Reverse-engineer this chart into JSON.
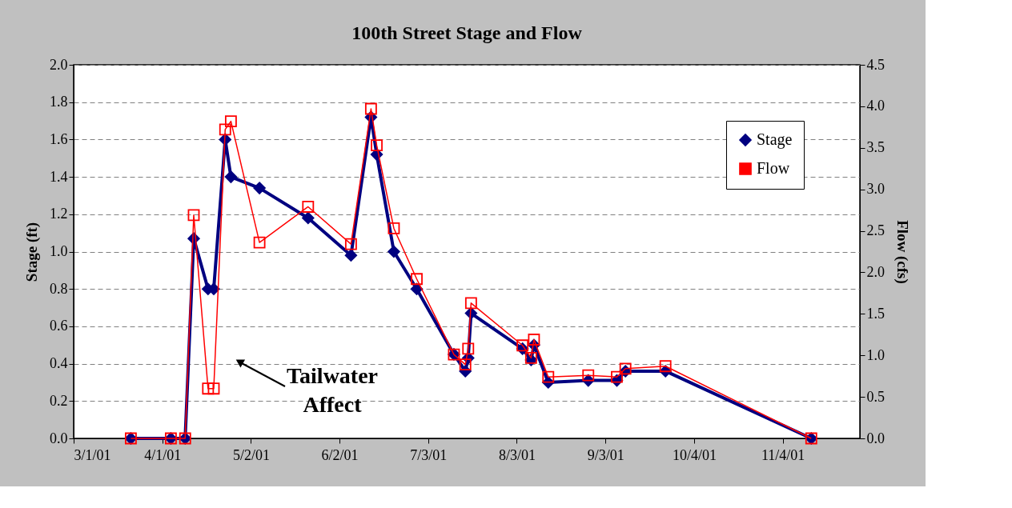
{
  "chart_data": {
    "type": "line",
    "title": "100th Street Stage and Flow",
    "ylabel": "Stage (ft)",
    "y2label": "Flow (cfs)",
    "x": [
      "2001-03-21",
      "2001-04-04",
      "2001-04-09",
      "2001-04-12",
      "2001-04-17",
      "2001-04-19",
      "2001-04-23",
      "2001-04-25",
      "2001-05-05",
      "2001-05-22",
      "2001-06-06",
      "2001-06-13",
      "2001-06-15",
      "2001-06-21",
      "2001-06-29",
      "2001-07-12",
      "2001-07-16",
      "2001-07-17",
      "2001-07-18",
      "2001-08-05",
      "2001-08-08",
      "2001-08-09",
      "2001-08-14",
      "2001-08-28",
      "2001-09-07",
      "2001-09-10",
      "2001-09-24",
      "2001-11-14"
    ],
    "series": [
      {
        "name": "Stage",
        "color": "#000080",
        "marker": "diamond",
        "values": [
          0,
          0,
          0,
          1.07,
          0.8,
          0.8,
          1.6,
          1.4,
          1.34,
          1.18,
          0.98,
          1.72,
          1.52,
          1.0,
          0.8,
          0.45,
          0.36,
          0.43,
          0.67,
          0.48,
          0.42,
          0.5,
          0.3,
          0.31,
          0.31,
          0.36,
          0.36,
          0
        ]
      },
      {
        "name": "Flow",
        "color": "#ff0000",
        "marker": "square",
        "axis": "y2",
        "values": [
          0,
          0,
          0,
          2.69,
          0.6,
          0.6,
          3.72,
          3.82,
          2.36,
          2.79,
          2.34,
          3.97,
          3.53,
          2.53,
          1.92,
          1.01,
          0.89,
          1.08,
          1.63,
          1.12,
          0.97,
          1.19,
          0.74,
          0.76,
          0.74,
          0.84,
          0.87,
          0
        ]
      }
    ],
    "xlim": [
      "2001-03-01",
      "2001-12-01"
    ],
    "xticks": [
      {
        "value": "2001-03-01",
        "label": "3/1/01"
      },
      {
        "value": "2001-04-01",
        "label": "4/1/01"
      },
      {
        "value": "2001-05-02",
        "label": "5/2/01"
      },
      {
        "value": "2001-06-02",
        "label": "6/2/01"
      },
      {
        "value": "2001-07-03",
        "label": "7/3/01"
      },
      {
        "value": "2001-08-03",
        "label": "8/3/01"
      },
      {
        "value": "2001-09-03",
        "label": "9/3/01"
      },
      {
        "value": "2001-10-04",
        "label": "10/4/01"
      },
      {
        "value": "2001-11-04",
        "label": "11/4/01"
      }
    ],
    "ylim": [
      0,
      2.0
    ],
    "yticks": [
      {
        "value": 0,
        "label": "0.0"
      },
      {
        "value": 0.2,
        "label": "0.2"
      },
      {
        "value": 0.4,
        "label": "0.4"
      },
      {
        "value": 0.6,
        "label": "0.6"
      },
      {
        "value": 0.8,
        "label": "0.8"
      },
      {
        "value": 1.0,
        "label": "1.0"
      },
      {
        "value": 1.2,
        "label": "1.2"
      },
      {
        "value": 1.4,
        "label": "1.4"
      },
      {
        "value": 1.6,
        "label": "1.6"
      },
      {
        "value": 1.8,
        "label": "1.8"
      },
      {
        "value": 2.0,
        "label": "2.0"
      }
    ],
    "y2lim": [
      0,
      4.5
    ],
    "y2ticks": [
      {
        "value": 0,
        "label": "0.0"
      },
      {
        "value": 0.5,
        "label": "0.5"
      },
      {
        "value": 1.0,
        "label": "1.0"
      },
      {
        "value": 1.5,
        "label": "1.5"
      },
      {
        "value": 2.0,
        "label": "2.0"
      },
      {
        "value": 2.5,
        "label": "2.5"
      },
      {
        "value": 3.0,
        "label": "3.0"
      },
      {
        "value": 3.5,
        "label": "3.5"
      },
      {
        "value": 4.0,
        "label": "4.0"
      },
      {
        "value": 4.5,
        "label": "4.5"
      }
    ],
    "grid": "y",
    "legend": "top right",
    "annotations": [
      "Tailwater Affect"
    ]
  }
}
